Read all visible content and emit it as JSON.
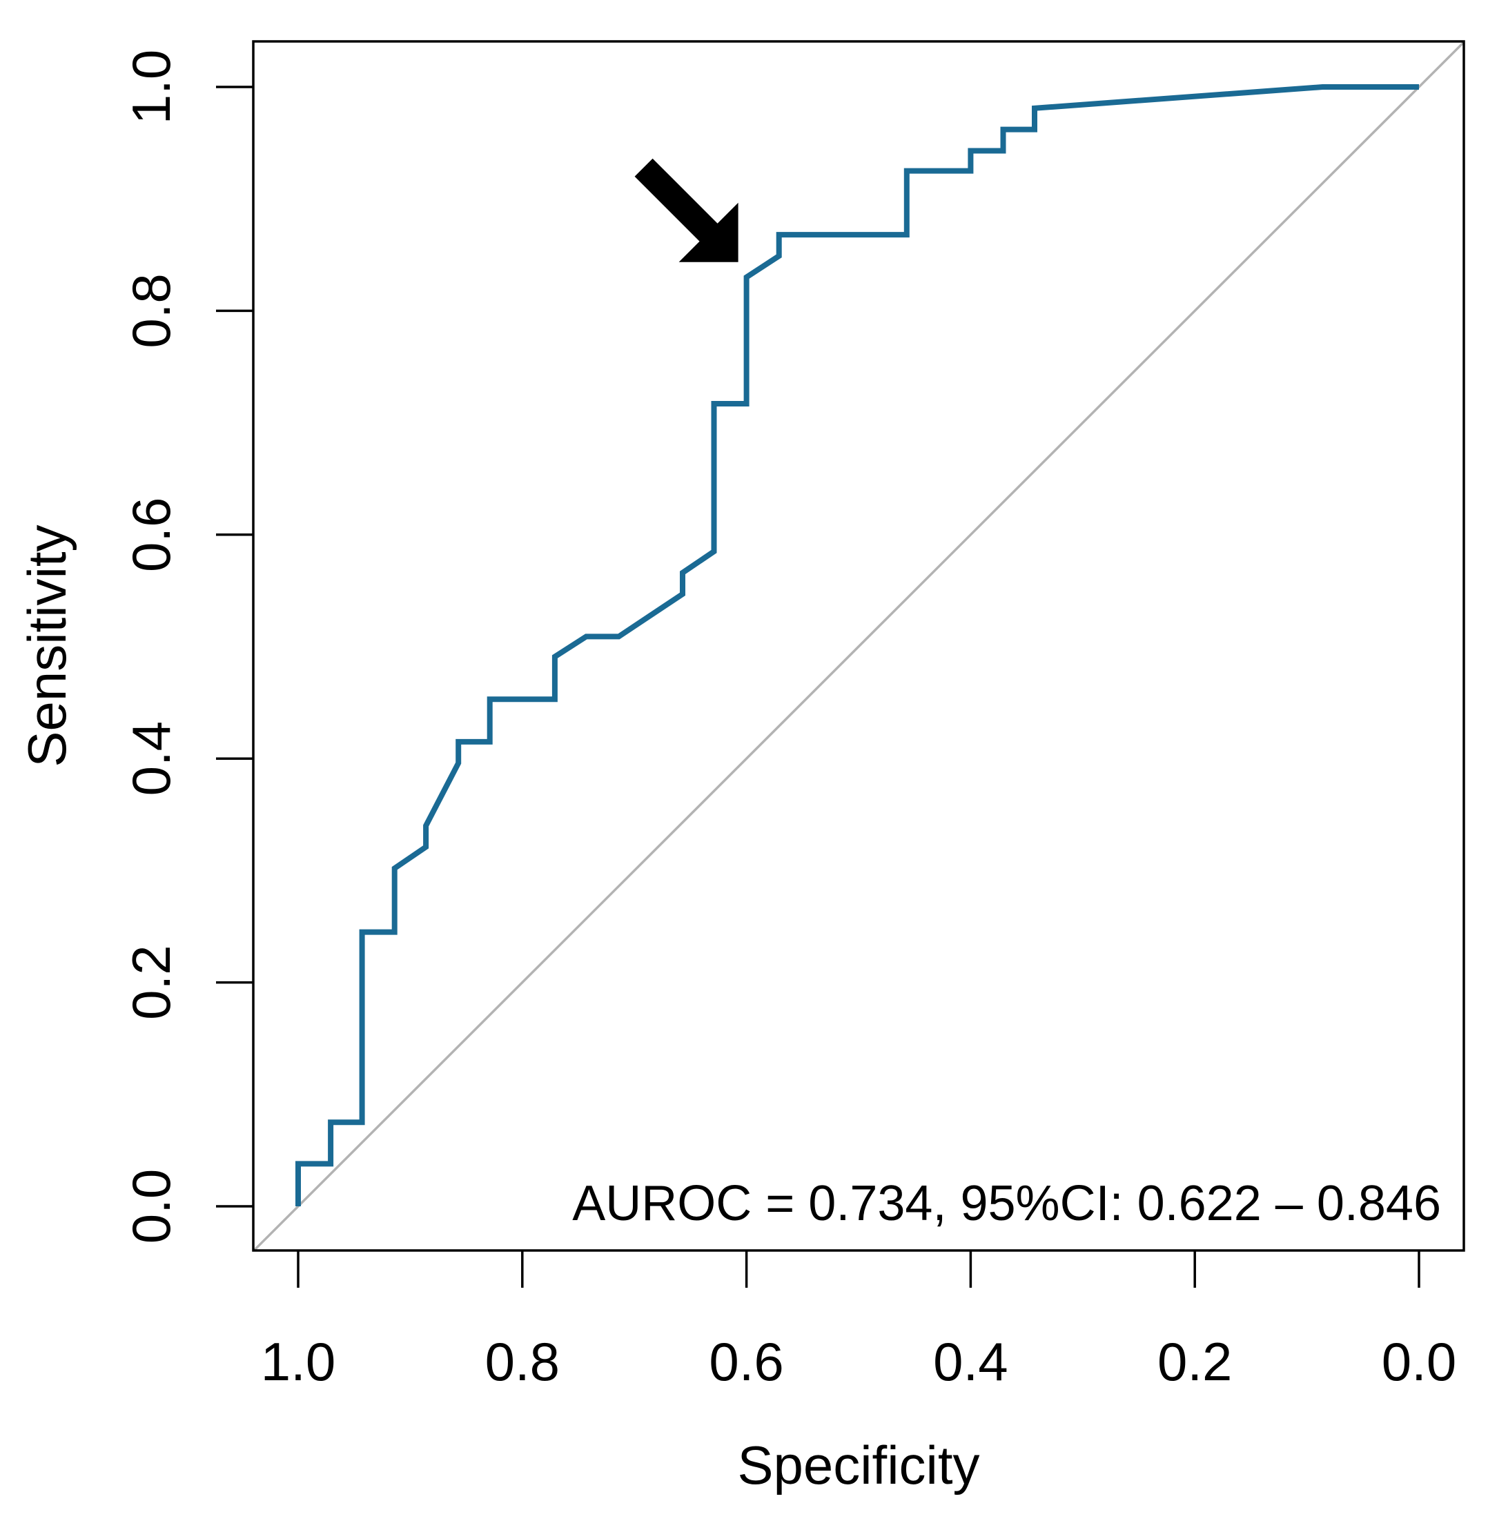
{
  "chart_data": {
    "type": "line",
    "title": "",
    "xlabel": "Specificity",
    "ylabel": "Sensitivity",
    "xlim": [
      1.0,
      0.0
    ],
    "ylim": [
      0.0,
      1.0
    ],
    "x_reversed": true,
    "grid": false,
    "xticks": [
      1.0,
      0.8,
      0.6,
      0.4,
      0.2,
      0.0
    ],
    "xtick_labels": [
      "1.0",
      "0.8",
      "0.6",
      "0.4",
      "0.2",
      "0.0"
    ],
    "yticks": [
      0.0,
      0.2,
      0.4,
      0.6,
      0.8,
      1.0
    ],
    "ytick_labels": [
      "0.0",
      "0.2",
      "0.4",
      "0.6",
      "0.8",
      "1.0"
    ],
    "annotation": "AUROC = 0.734, 95%CI: 0.622 – 0.846",
    "colors": {
      "roc": "#1a6a94",
      "reference": "#b3b3b3",
      "axis": "#000000",
      "arrow": "#000000"
    },
    "series": [
      {
        "name": "ROC",
        "specificity": [
          1.0,
          1.0,
          0.971,
          0.971,
          0.943,
          0.943,
          0.914,
          0.914,
          0.886,
          0.886,
          0.857,
          0.857,
          0.829,
          0.829,
          0.771,
          0.771,
          0.743,
          0.714,
          0.657,
          0.657,
          0.629,
          0.629,
          0.6,
          0.6,
          0.571,
          0.571,
          0.457,
          0.457,
          0.4,
          0.4,
          0.371,
          0.371,
          0.343,
          0.343,
          0.086,
          0.0
        ],
        "sensitivity": [
          0.0,
          0.038,
          0.038,
          0.075,
          0.075,
          0.245,
          0.245,
          0.302,
          0.321,
          0.34,
          0.396,
          0.415,
          0.415,
          0.453,
          0.453,
          0.491,
          0.509,
          0.509,
          0.547,
          0.566,
          0.585,
          0.717,
          0.717,
          0.83,
          0.849,
          0.868,
          0.868,
          0.925,
          0.925,
          0.943,
          0.943,
          0.962,
          0.962,
          0.981,
          1.0,
          1.0
        ]
      },
      {
        "name": "Reference",
        "specificity": [
          1.04,
          -0.04
        ],
        "sensitivity": [
          -0.04,
          1.04
        ]
      }
    ],
    "highlight_point": {
      "specificity": 0.6,
      "sensitivity": 0.83,
      "marker": "arrow"
    }
  }
}
